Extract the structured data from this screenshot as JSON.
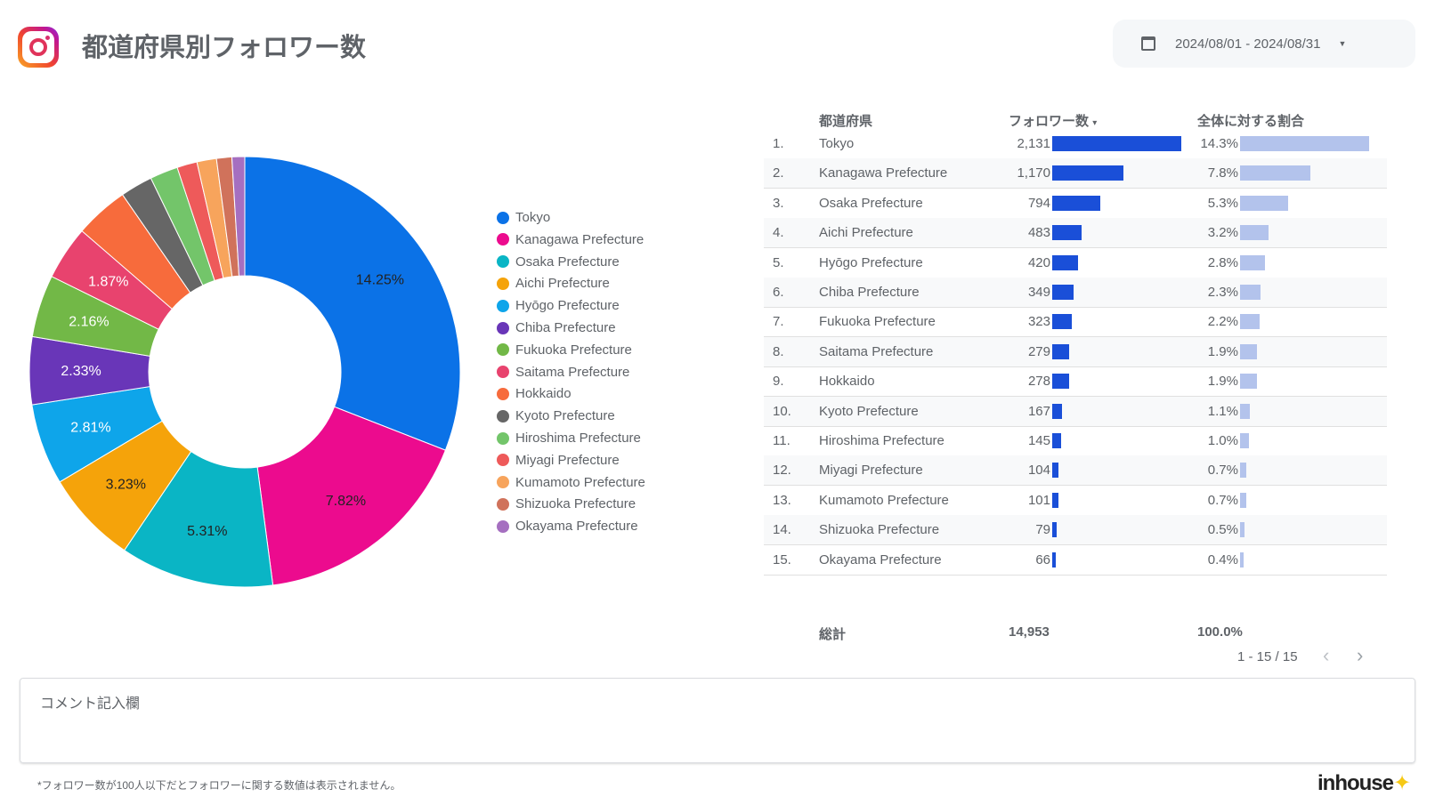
{
  "header": {
    "title": "都道府県別フォロワー数",
    "icon": "instagram-icon",
    "date_range": "2024/08/01 - 2024/08/31"
  },
  "table": {
    "col_prefecture": "都道府県",
    "col_followers": "フォロワー数",
    "col_share": "全体に対する割合",
    "sort_indicator": "▾",
    "total_label": "総計",
    "total_followers": "14,953",
    "total_share": "100.0%",
    "pagination": "1 - 15 / 15",
    "rows": [
      {
        "rank": "1.",
        "name": "Tokyo",
        "followers": "2,131",
        "share": "14.3%"
      },
      {
        "rank": "2.",
        "name": "Kanagawa Prefecture",
        "followers": "1,170",
        "share": "7.8%"
      },
      {
        "rank": "3.",
        "name": "Osaka Prefecture",
        "followers": "794",
        "share": "5.3%"
      },
      {
        "rank": "4.",
        "name": "Aichi Prefecture",
        "followers": "483",
        "share": "3.2%"
      },
      {
        "rank": "5.",
        "name": "Hyōgo Prefecture",
        "followers": "420",
        "share": "2.8%"
      },
      {
        "rank": "6.",
        "name": "Chiba Prefecture",
        "followers": "349",
        "share": "2.3%"
      },
      {
        "rank": "7.",
        "name": "Fukuoka Prefecture",
        "followers": "323",
        "share": "2.2%"
      },
      {
        "rank": "8.",
        "name": "Saitama Prefecture",
        "followers": "279",
        "share": "1.9%"
      },
      {
        "rank": "9.",
        "name": "Hokkaido",
        "followers": "278",
        "share": "1.9%"
      },
      {
        "rank": "10.",
        "name": "Kyoto Prefecture",
        "followers": "167",
        "share": "1.1%"
      },
      {
        "rank": "11.",
        "name": "Hiroshima Prefecture",
        "followers": "145",
        "share": "1.0%"
      },
      {
        "rank": "12.",
        "name": "Miyagi Prefecture",
        "followers": "104",
        "share": "0.7%"
      },
      {
        "rank": "13.",
        "name": "Kumamoto Prefecture",
        "followers": "101",
        "share": "0.7%"
      },
      {
        "rank": "14.",
        "name": "Shizuoka Prefecture",
        "followers": "79",
        "share": "0.5%"
      },
      {
        "rank": "15.",
        "name": "Okayama Prefecture",
        "followers": "66",
        "share": "0.4%"
      }
    ]
  },
  "chart_data": {
    "type": "pie",
    "donut": true,
    "legend": "right",
    "categories": [
      "Tokyo",
      "Kanagawa Prefecture",
      "Osaka Prefecture",
      "Aichi Prefecture",
      "Hyōgo Prefecture",
      "Chiba Prefecture",
      "Fukuoka Prefecture",
      "Saitama Prefecture",
      "Hokkaido",
      "Kyoto Prefecture",
      "Hiroshima Prefecture",
      "Miyagi Prefecture",
      "Kumamoto Prefecture",
      "Shizuoka Prefecture",
      "Okayama Prefecture"
    ],
    "values": [
      2131,
      1170,
      794,
      483,
      420,
      349,
      323,
      279,
      278,
      167,
      145,
      104,
      101,
      79,
      66
    ],
    "data_labels": [
      "14.25%",
      "7.82%",
      "5.31%",
      "3.23%",
      "2.81%",
      "2.33%",
      "2.16%",
      "1.87%",
      "",
      "",
      "",
      "",
      "",
      "",
      ""
    ],
    "colors": [
      "#0b72e7",
      "#ec0b8e",
      "#0ab5c5",
      "#f5a30a",
      "#0ea5ea",
      "#6936b8",
      "#72b847",
      "#e8436e",
      "#f76b3c",
      "#666666",
      "#73c56a",
      "#ee5a5a",
      "#f7a45c",
      "#d0725b",
      "#a56fc0"
    ]
  },
  "colors": {
    "count_bar": "#1a4fd8",
    "share_bar": "#b3c3ec"
  },
  "comment": {
    "label": "コメント記入欄"
  },
  "footer": {
    "note": "*フォロワー数が100人以下だとフォロワーに関する数値は表示されません。",
    "brand": "inhouse"
  }
}
